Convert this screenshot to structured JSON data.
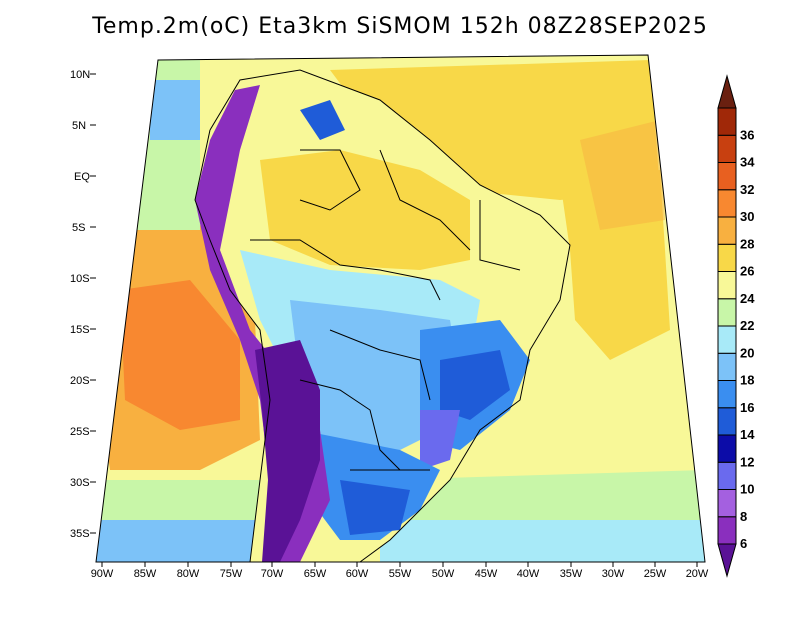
{
  "title": "Temp.2m(oC) Eta3km SiSMOM 152h 08Z28SEP2025",
  "lat_labels": [
    "10N",
    "5N",
    "EQ",
    "5S",
    "10S",
    "15S",
    "20S",
    "25S",
    "30S",
    "35S"
  ],
  "lon_labels": [
    "90W",
    "85W",
    "80W",
    "75W",
    "70W",
    "65W",
    "60W",
    "55W",
    "50W",
    "45W",
    "40W",
    "35W",
    "30W",
    "25W",
    "20W"
  ],
  "colorbar": {
    "labels": [
      "6",
      "8",
      "10",
      "12",
      "14",
      "16",
      "18",
      "20",
      "22",
      "24",
      "26",
      "28",
      "30",
      "32",
      "34",
      "36"
    ],
    "colors": [
      "#5a1296",
      "#8a2fbe",
      "#a460e0",
      "#6a6aee",
      "#0c0ca8",
      "#1f5cd8",
      "#3a8ef0",
      "#7cc2f8",
      "#a8eaf8",
      "#c8f6a8",
      "#f8f898",
      "#f8d848",
      "#f8b040",
      "#f88830",
      "#e86020",
      "#c84010",
      "#a02808",
      "#6a2010"
    ]
  },
  "colors": {
    "land_cool": "#3a8ef0",
    "land_cold": "#5a1296",
    "ocean_warm": "#f8b040",
    "ocean_hot": "#f88830"
  }
}
